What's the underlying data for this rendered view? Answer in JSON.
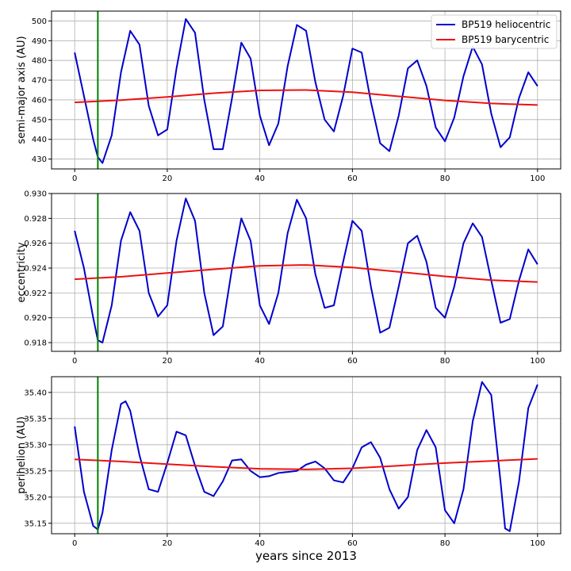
{
  "chart_data": [
    {
      "type": "line",
      "ylabel": "semi-major axis (AU)",
      "xlabel": "",
      "xlim": [
        -5,
        105
      ],
      "ylim": [
        425,
        505
      ],
      "xticks": [
        0,
        20,
        40,
        60,
        80,
        100
      ],
      "yticks": [
        430,
        440,
        450,
        460,
        470,
        480,
        490,
        500
      ],
      "ytick_labels": [
        "430",
        "440",
        "450",
        "460",
        "470",
        "480",
        "490",
        "500"
      ],
      "grid": true,
      "legend": "upper right",
      "vline": {
        "x": 5,
        "color": "#008000"
      },
      "series": [
        {
          "name": "BP519 heliocentric",
          "color": "#0000cc",
          "x": [
            0,
            2,
            4,
            5,
            6,
            8,
            10,
            12,
            14,
            16,
            18,
            20,
            22,
            24,
            26,
            28,
            30,
            32,
            34,
            36,
            38,
            40,
            42,
            44,
            46,
            48,
            50,
            52,
            54,
            56,
            58,
            60,
            62,
            64,
            66,
            68,
            70,
            72,
            74,
            76,
            78,
            80,
            82,
            84,
            86,
            88,
            90,
            92,
            94,
            96,
            98,
            100
          ],
          "y": [
            484,
            462,
            440,
            431,
            428,
            442,
            474,
            495,
            488,
            457,
            442,
            445,
            476,
            501,
            494,
            460,
            435,
            435,
            461,
            489,
            481,
            452,
            437,
            448,
            477,
            498,
            495,
            469,
            450,
            444,
            462,
            486,
            484,
            459,
            438,
            434,
            452,
            476,
            480,
            467,
            446,
            439,
            451,
            472,
            487,
            478,
            453,
            436,
            441,
            461,
            474,
            467
          ]
        },
        {
          "name": "BP519 barycentric",
          "color": "#ee1111",
          "x": [
            0,
            10,
            20,
            30,
            40,
            50,
            60,
            70,
            80,
            90,
            100
          ],
          "y": [
            458.7,
            459.9,
            461.5,
            463.4,
            464.8,
            465.0,
            463.9,
            461.8,
            459.7,
            458.2,
            457.4
          ]
        }
      ]
    },
    {
      "type": "line",
      "ylabel": "eccentricity",
      "xlabel": "",
      "xlim": [
        -5,
        105
      ],
      "ylim": [
        0.9173,
        0.93
      ],
      "xticks": [
        0,
        20,
        40,
        60,
        80,
        100
      ],
      "yticks": [
        0.918,
        0.92,
        0.922,
        0.924,
        0.926,
        0.928,
        0.93
      ],
      "ytick_labels": [
        "0.918",
        "0.920",
        "0.922",
        "0.924",
        "0.926",
        "0.928",
        "0.930"
      ],
      "grid": true,
      "vline": {
        "x": 5,
        "color": "#008000"
      },
      "series": [
        {
          "name": "BP519 heliocentric",
          "color": "#0000cc",
          "x": [
            0,
            2,
            4,
            5,
            6,
            8,
            10,
            12,
            14,
            16,
            18,
            20,
            22,
            24,
            26,
            28,
            30,
            32,
            34,
            36,
            38,
            40,
            42,
            44,
            46,
            48,
            50,
            52,
            54,
            56,
            58,
            60,
            62,
            64,
            66,
            68,
            70,
            72,
            74,
            76,
            78,
            80,
            82,
            84,
            86,
            88,
            90,
            92,
            94,
            96,
            98,
            100
          ],
          "y": [
            0.927,
            0.924,
            0.92,
            0.9182,
            0.918,
            0.921,
            0.9262,
            0.9285,
            0.927,
            0.922,
            0.9201,
            0.921,
            0.9262,
            0.9296,
            0.9278,
            0.922,
            0.9186,
            0.9193,
            0.924,
            0.928,
            0.9262,
            0.921,
            0.9195,
            0.922,
            0.9268,
            0.9295,
            0.928,
            0.9235,
            0.9208,
            0.921,
            0.9245,
            0.9278,
            0.927,
            0.9225,
            0.9188,
            0.9192,
            0.9225,
            0.926,
            0.9266,
            0.9245,
            0.9208,
            0.92,
            0.9225,
            0.926,
            0.9276,
            0.9265,
            0.923,
            0.9196,
            0.9199,
            0.923,
            0.9255,
            0.9243
          ]
        },
        {
          "name": "BP519 barycentric",
          "color": "#ee1111",
          "x": [
            0,
            10,
            20,
            30,
            40,
            50,
            60,
            70,
            80,
            90,
            100
          ],
          "y": [
            0.9231,
            0.9233,
            0.9236,
            0.9239,
            0.92418,
            0.92425,
            0.92405,
            0.9237,
            0.92333,
            0.92303,
            0.92288
          ]
        }
      ]
    },
    {
      "type": "line",
      "ylabel": "perihelion (AU)",
      "xlabel": "years since 2013",
      "xlim": [
        -5,
        105
      ],
      "ylim": [
        35.13,
        35.43
      ],
      "xticks": [
        0,
        20,
        40,
        60,
        80,
        100
      ],
      "yticks": [
        35.15,
        35.2,
        35.25,
        35.3,
        35.35,
        35.4
      ],
      "ytick_labels": [
        "35.15",
        "35.20",
        "35.25",
        "35.30",
        "35.35",
        "35.40"
      ],
      "grid": true,
      "vline": {
        "x": 5,
        "color": "#008000"
      },
      "series": [
        {
          "name": "BP519 heliocentric",
          "color": "#0000cc",
          "x": [
            0,
            2,
            4,
            5,
            6,
            8,
            10,
            11,
            12,
            14,
            16,
            18,
            20,
            22,
            24,
            26,
            28,
            30,
            32,
            34,
            36,
            38,
            40,
            42,
            44,
            46,
            48,
            50,
            52,
            54,
            56,
            58,
            60,
            62,
            64,
            66,
            68,
            70,
            72,
            74,
            76,
            78,
            80,
            82,
            84,
            86,
            88,
            90,
            92,
            93,
            94,
            96,
            98,
            100
          ],
          "y": [
            35.335,
            35.21,
            35.145,
            35.138,
            35.17,
            35.29,
            35.378,
            35.383,
            35.365,
            35.28,
            35.215,
            35.21,
            35.265,
            35.325,
            35.318,
            35.26,
            35.21,
            35.202,
            35.23,
            35.27,
            35.272,
            35.25,
            35.238,
            35.24,
            35.246,
            35.248,
            35.25,
            35.262,
            35.268,
            35.255,
            35.232,
            35.228,
            35.255,
            35.295,
            35.305,
            35.275,
            35.215,
            35.178,
            35.2,
            35.29,
            35.328,
            35.295,
            35.175,
            35.15,
            35.215,
            35.345,
            35.42,
            35.395,
            35.23,
            35.14,
            35.135,
            35.23,
            35.37,
            35.415
          ]
        },
        {
          "name": "BP519 barycentric",
          "color": "#ee1111",
          "x": [
            0,
            10,
            20,
            30,
            40,
            50,
            60,
            70,
            80,
            90,
            100
          ],
          "y": [
            35.272,
            35.268,
            35.263,
            35.258,
            35.254,
            35.253,
            35.255,
            35.26,
            35.265,
            35.269,
            35.273
          ]
        }
      ]
    }
  ]
}
